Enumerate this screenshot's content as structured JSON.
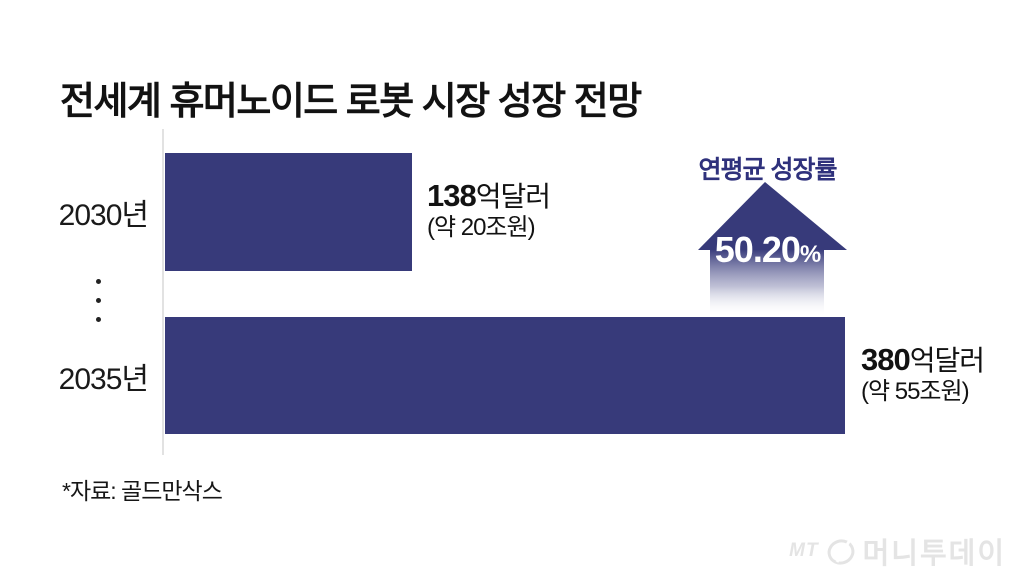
{
  "title": "전세계 휴머노이드 로봇 시장 성장 전망",
  "source_note": "*자료: 골드만삭스",
  "growth": {
    "label": "연평균 성장률",
    "value": "50.20",
    "unit": "%"
  },
  "logo": {
    "mt": "MT",
    "name": "머니투데이",
    "icon": "circle-slash-icon"
  },
  "colors": {
    "bar": "#373a7a",
    "arrow": "#373a7a",
    "accent_text": "#2f317c",
    "axis": "#e2e2e2",
    "text": "#121212",
    "watermark": "#e4e4e4"
  },
  "chart_data": {
    "type": "bar",
    "orientation": "horizontal",
    "title": "전세계 휴머노이드 로봇 시장 성장 전망",
    "categories": [
      "2030년",
      "2035년"
    ],
    "values": [
      138,
      380
    ],
    "unit": "억달러",
    "value_labels": [
      {
        "number": "138",
        "suffix": "억달러",
        "sub": "(약 20조원)"
      },
      {
        "number": "380",
        "suffix": "억달러",
        "sub": "(약 55조원)"
      }
    ],
    "annotation": {
      "label": "연평균 성장률",
      "value": "50.20%"
    },
    "xlim": [
      0,
      380
    ],
    "grid": false,
    "legend": false,
    "bar_color": "#373a7a",
    "source": "골드만삭스"
  }
}
